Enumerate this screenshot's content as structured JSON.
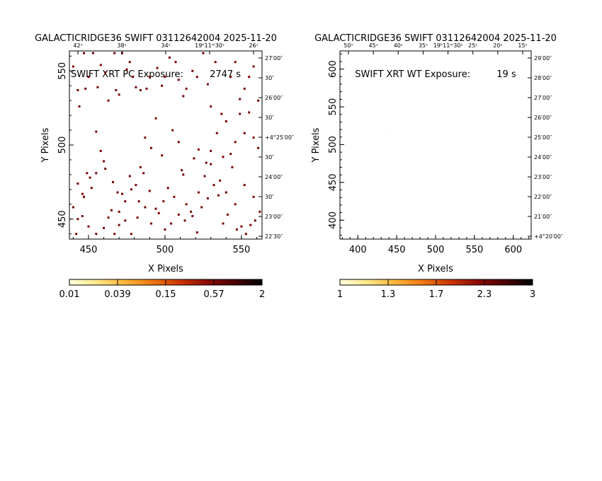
{
  "chart_data": [
    {
      "type": "scatter",
      "title": "GALACTICRIDGE36 SWIFT 03112642004 2025-11-20",
      "subtitle": "SWIFT XRT PC Exposure:         2747 s",
      "xlabel": "X Pixels",
      "ylabel": "Y Pixels",
      "xlim": [
        437.5,
        563.5
      ],
      "ylim": [
        436.5,
        563.5
      ],
      "x_ticks": [
        450,
        500,
        550
      ],
      "y_ticks": [
        450,
        500,
        550
      ],
      "top_ra_labels": [
        "42ˢ",
        "38ˢ",
        "34ˢ",
        "19ʰ11ᵐ30ˢ",
        "26ˢ"
      ],
      "right_dec_labels": [
        "27′00″",
        "30″",
        "26′00″",
        "30″",
        "+4°25′00″",
        "30″",
        "24′00″",
        "30″",
        "23′00″",
        "22′30″"
      ],
      "colorbar": {
        "labels": [
          "0.01",
          "0.039",
          "0.15",
          "0.57",
          "2"
        ],
        "scale": "log",
        "colors": [
          "#ffffdd",
          "#ffe88a",
          "#ffb637",
          "#f07810",
          "#cc3500",
          "#8c0a00",
          "#4a0000",
          "#000000"
        ]
      },
      "points": [
        [
          440,
          553
        ],
        [
          443,
          537
        ],
        [
          444,
          526
        ],
        [
          447,
          562
        ],
        [
          448,
          538
        ],
        [
          450,
          546
        ],
        [
          453,
          562
        ],
        [
          456,
          539
        ],
        [
          458,
          554
        ],
        [
          461,
          549
        ],
        [
          463,
          530
        ],
        [
          467,
          562
        ],
        [
          468,
          537
        ],
        [
          470,
          534
        ],
        [
          472,
          562
        ],
        [
          475,
          551
        ],
        [
          477,
          556
        ],
        [
          479,
          546
        ],
        [
          481,
          539
        ],
        [
          484,
          537
        ],
        [
          488,
          538
        ],
        [
          490,
          546
        ],
        [
          495,
          552
        ],
        [
          498,
          540
        ],
        [
          500,
          546
        ],
        [
          503,
          559
        ],
        [
          507,
          556
        ],
        [
          509,
          544
        ],
        [
          512,
          533
        ],
        [
          514,
          538
        ],
        [
          518,
          550
        ],
        [
          521,
          546
        ],
        [
          525,
          562
        ],
        [
          528,
          541
        ],
        [
          530,
          526
        ],
        [
          533,
          556
        ],
        [
          537,
          521
        ],
        [
          540,
          516
        ],
        [
          543,
          546
        ],
        [
          546,
          556
        ],
        [
          549,
          531
        ],
        [
          552,
          538
        ],
        [
          555,
          546
        ],
        [
          558,
          553
        ],
        [
          561,
          530
        ],
        [
          555,
          522
        ],
        [
          549,
          521
        ],
        [
          552,
          508
        ],
        [
          558,
          505
        ],
        [
          561,
          498
        ],
        [
          546,
          502
        ],
        [
          543,
          494
        ],
        [
          538,
          492
        ],
        [
          534,
          508
        ],
        [
          530,
          496
        ],
        [
          527,
          488
        ],
        [
          522,
          497
        ],
        [
          519,
          491
        ],
        [
          512,
          480
        ],
        [
          509,
          502
        ],
        [
          505,
          510
        ],
        [
          498,
          493
        ],
        [
          494,
          518
        ],
        [
          491,
          498
        ],
        [
          487,
          505
        ],
        [
          484,
          485
        ],
        [
          481,
          473
        ],
        [
          477,
          479
        ],
        [
          472,
          467
        ],
        [
          469,
          468
        ],
        [
          466,
          475
        ],
        [
          461,
          484
        ],
        [
          458,
          496
        ],
        [
          455,
          509
        ],
        [
          452,
          471
        ],
        [
          449,
          481
        ],
        [
          446,
          467
        ],
        [
          443,
          474
        ],
        [
          440,
          458
        ],
        [
          443,
          450
        ],
        [
          447,
          465
        ],
        [
          451,
          478
        ],
        [
          455,
          481
        ],
        [
          460,
          489
        ],
        [
          463,
          451
        ],
        [
          467,
          440
        ],
        [
          470,
          455
        ],
        [
          474,
          462
        ],
        [
          478,
          470
        ],
        [
          482,
          451
        ],
        [
          486,
          481
        ],
        [
          490,
          469
        ],
        [
          494,
          457
        ],
        [
          499,
          462
        ],
        [
          502,
          471
        ],
        [
          506,
          465
        ],
        [
          511,
          483
        ],
        [
          514,
          460
        ],
        [
          518,
          452
        ],
        [
          521,
          441
        ],
        [
          524,
          458
        ],
        [
          528,
          464
        ],
        [
          532,
          473
        ],
        [
          535,
          466
        ],
        [
          538,
          447
        ],
        [
          541,
          453
        ],
        [
          544,
          485
        ],
        [
          547,
          443
        ],
        [
          550,
          445
        ],
        [
          553,
          440
        ],
        [
          556,
          446
        ],
        [
          559,
          449
        ],
        [
          562,
          455
        ],
        [
          558,
          465
        ],
        [
          552,
          473
        ],
        [
          546,
          460
        ],
        [
          540,
          468
        ],
        [
          536,
          476
        ],
        [
          530,
          487
        ],
        [
          526,
          479
        ],
        [
          522,
          468
        ],
        [
          517,
          455
        ],
        [
          513,
          449
        ],
        [
          509,
          453
        ],
        [
          504,
          447
        ],
        [
          500,
          443
        ],
        [
          496,
          454
        ],
        [
          491,
          447
        ],
        [
          487,
          458
        ],
        [
          483,
          462
        ],
        [
          478,
          440
        ],
        [
          474,
          449
        ],
        [
          470,
          446
        ],
        [
          465,
          456
        ],
        [
          460,
          444
        ],
        [
          455,
          440
        ],
        [
          450,
          445
        ],
        [
          446,
          452
        ],
        [
          442,
          440
        ]
      ]
    },
    {
      "type": "scatter",
      "title": "GALACTICRIDGE36 SWIFT 03112642004 2025-11-20",
      "subtitle": "SWIFT XRT WT Exposure:         19 s",
      "xlabel": "X Pixels",
      "ylabel": "Y Pixels",
      "xlim": [
        377,
        623
      ],
      "ylim": [
        375,
        624
      ],
      "x_ticks": [
        400,
        450,
        500,
        550,
        600
      ],
      "y_ticks": [
        400,
        450,
        500,
        550,
        600
      ],
      "top_ra_labels": [
        "50ˢ",
        "45ˢ",
        "40ˢ",
        "35ˢ",
        "19ʰ11ᵐ30ˢ",
        "25ˢ",
        "20ˢ",
        "15ˢ"
      ],
      "right_dec_labels": [
        "29′00″",
        "28′00″",
        "27′00″",
        "26′00″",
        "25′00″",
        "24′00″",
        "23′00″",
        "22′00″",
        "21′00″",
        "+4°20′00″"
      ],
      "colorbar": {
        "labels": [
          "1",
          "1.3",
          "1.7",
          "2.3",
          "3"
        ],
        "scale": "log",
        "colors": [
          "#ffffdd",
          "#ffe88a",
          "#ffb637",
          "#f07810",
          "#cc3500",
          "#8c0a00",
          "#4a0000",
          "#000000"
        ]
      },
      "points": [
        [
          428,
          522
        ],
        [
          439,
          517
        ]
      ]
    }
  ]
}
